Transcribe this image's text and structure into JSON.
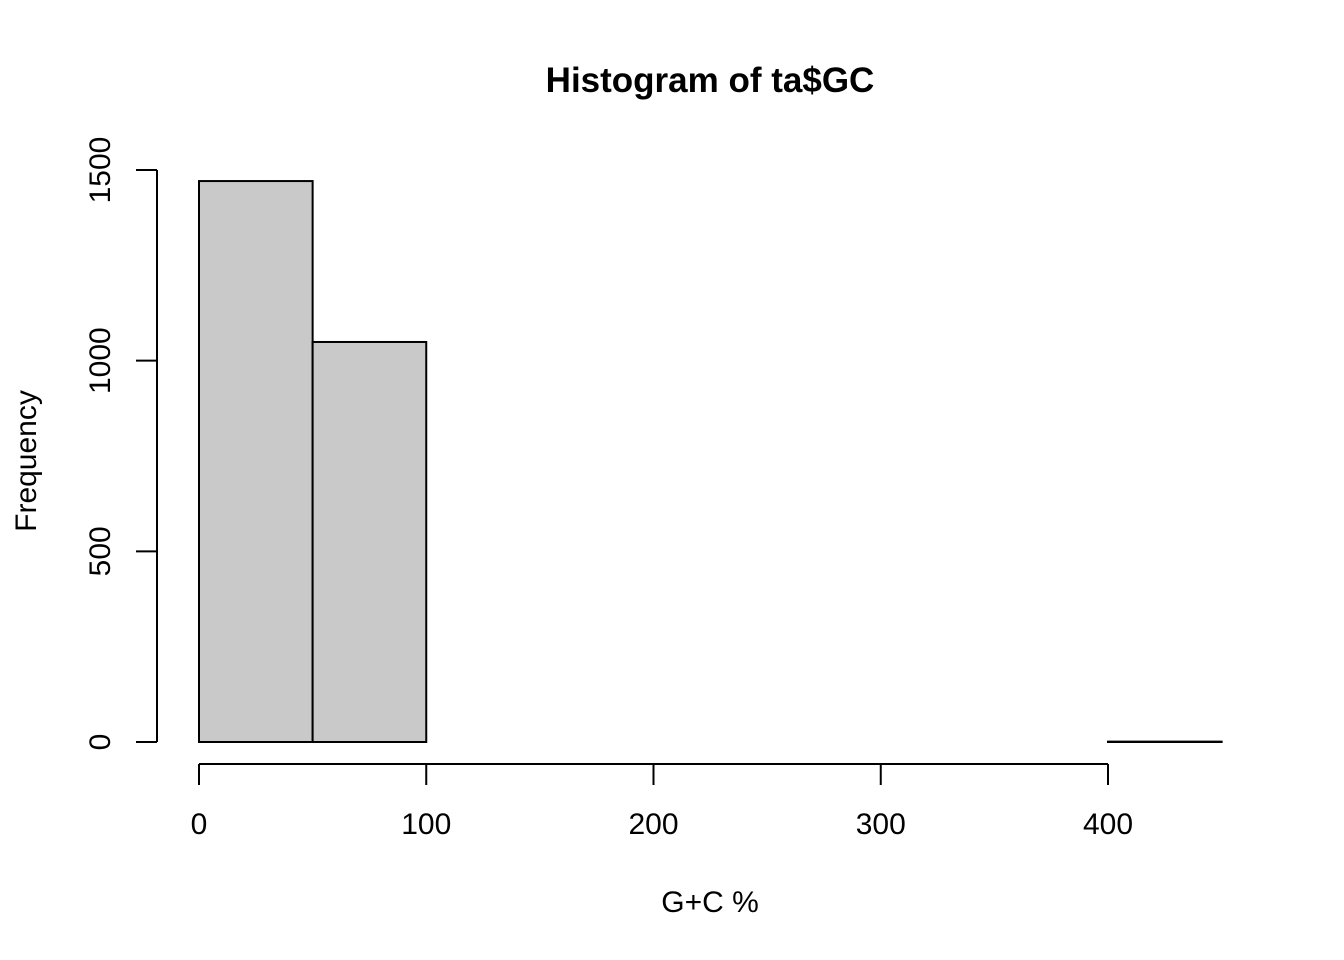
{
  "chart_data": {
    "type": "bar",
    "title": "Histogram of ta$GC",
    "xlabel": "G+C %",
    "ylabel": "Frequency",
    "bins": [
      {
        "from": 0,
        "to": 50,
        "count": 1471
      },
      {
        "from": 50,
        "to": 100,
        "count": 1049
      },
      {
        "from": 100,
        "to": 150,
        "count": 0
      },
      {
        "from": 150,
        "to": 200,
        "count": 0
      },
      {
        "from": 200,
        "to": 250,
        "count": 0
      },
      {
        "from": 250,
        "to": 300,
        "count": 0
      },
      {
        "from": 300,
        "to": 350,
        "count": 0
      },
      {
        "from": 350,
        "to": 400,
        "count": 0
      },
      {
        "from": 400,
        "to": 450,
        "count": 1
      }
    ],
    "xlim": [
      0,
      450
    ],
    "ylim": [
      0,
      1500
    ],
    "xticks": [
      0,
      100,
      200,
      300,
      400
    ],
    "yticks": [
      0,
      500,
      1000,
      1500
    ],
    "grid": false,
    "bar_fill": "#c9c9c9",
    "bar_stroke": "#000000"
  }
}
